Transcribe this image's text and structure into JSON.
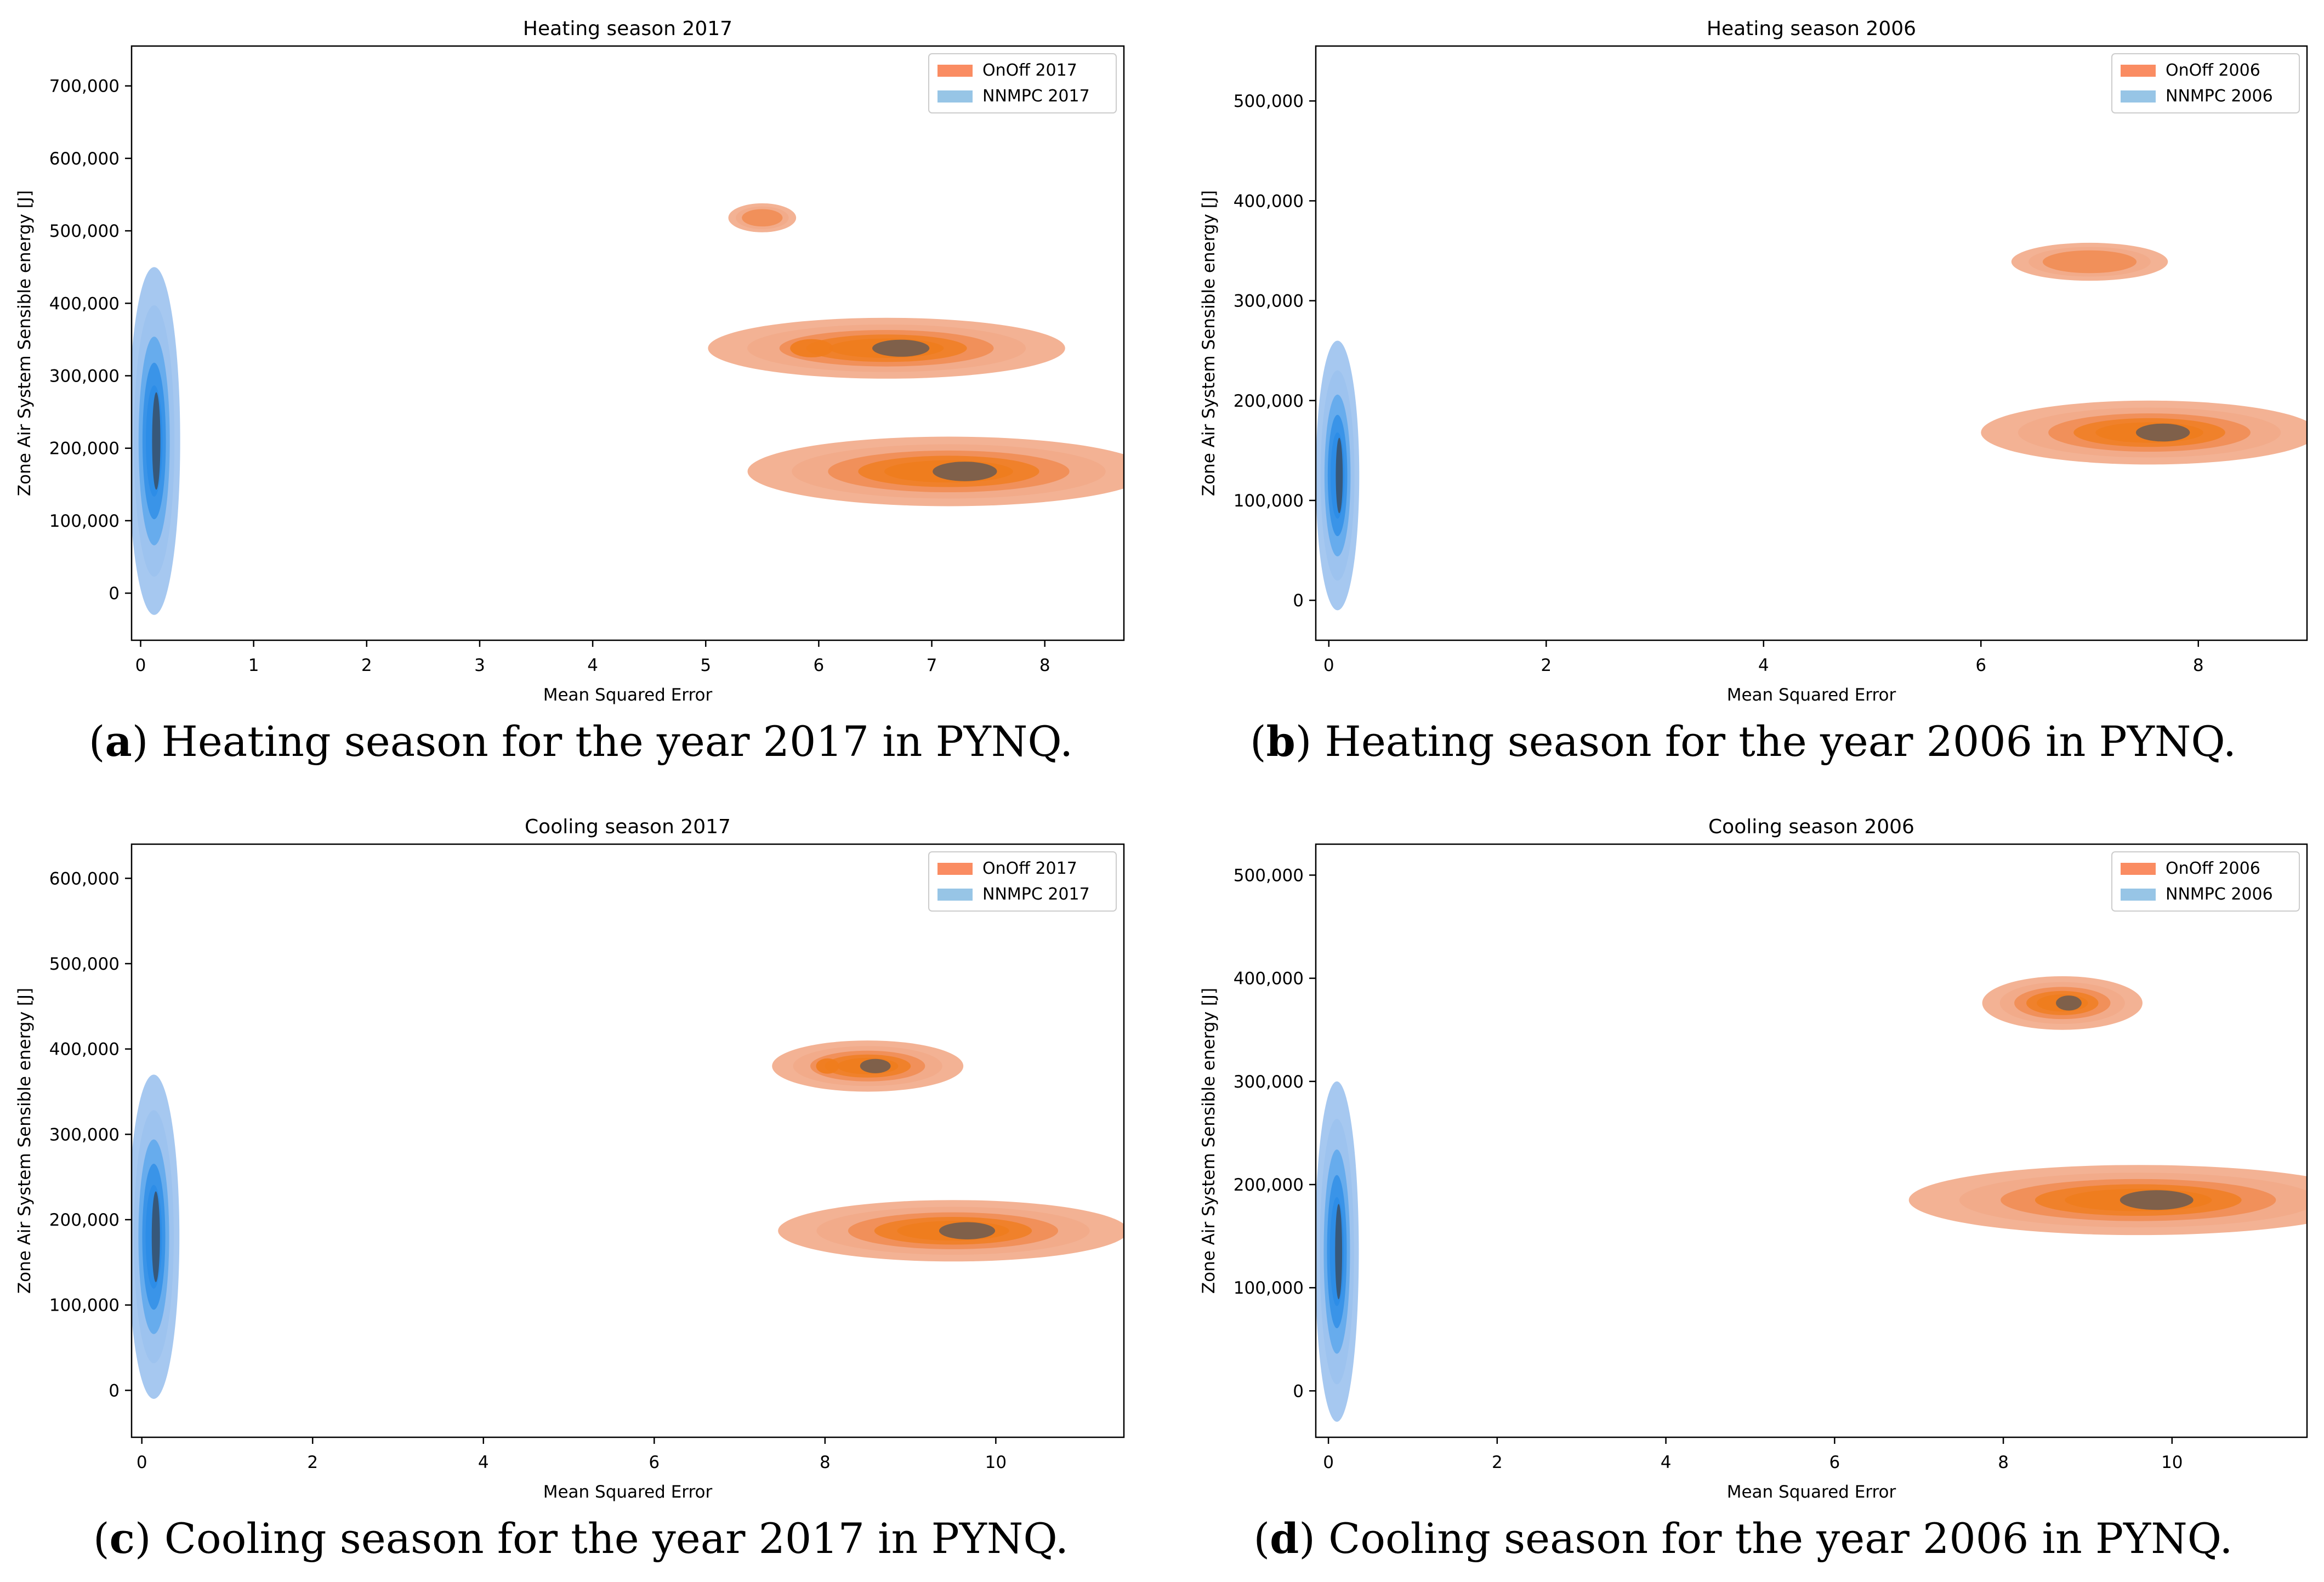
{
  "figure": {
    "captions": [
      {
        "label": "a",
        "text": "Heating season for the year 2017 in PYNQ."
      },
      {
        "label": "b",
        "text": "Heating season for the year 2006 in PYNQ."
      },
      {
        "label": "c",
        "text": "Cooling season for the year 2017 in PYNQ."
      },
      {
        "label": "d",
        "text": "Cooling season for the year 2006 in PYNQ."
      }
    ]
  },
  "colors": {
    "onoff_light": "#f2aa88",
    "onoff_mid": "#f08a4e",
    "onoff_strong": "#ef7c1c",
    "onoff_core": "#6b5a52",
    "nnmpc_light": "#9cc2ee",
    "nnmpc_mid": "#5aa6ec",
    "nnmpc_strong": "#2b8ce6",
    "nnmpc_core": "#3a4f66",
    "legend_onoff": "#fa8c62",
    "legend_nnmpc": "#97c5e6"
  },
  "chart_data": [
    {
      "type": "kde-density",
      "title": "Heating season 2017",
      "xlabel": "Mean Squared Error",
      "ylabel": "Zone Air System Sensible energy [J]",
      "xlim": [
        -0.08,
        8.7
      ],
      "ylim": [
        -65000,
        755000
      ],
      "xticks": [
        0,
        1,
        2,
        3,
        4,
        5,
        6,
        7,
        8
      ],
      "yticks": [
        0,
        100000,
        200000,
        300000,
        400000,
        500000,
        600000,
        700000
      ],
      "ytick_labels": [
        "0",
        "100,000",
        "200,000",
        "300,000",
        "400,000",
        "500,000",
        "600,000",
        "700,000"
      ],
      "legend": {
        "position": "top-right",
        "entries": [
          "OnOff 2017",
          "NNMPC 2017"
        ]
      },
      "series": [
        {
          "name": "OnOff 2017",
          "clusters": [
            {
              "cx": 7.15,
              "cy": 168000,
              "rx": 1.78,
              "ry": 48000,
              "cores": 1
            },
            {
              "cx": 6.6,
              "cy": 338000,
              "rx": 1.58,
              "ry": 42000,
              "cores": 2
            },
            {
              "cx": 5.5,
              "cy": 518000,
              "rx": 0.3,
              "ry": 20000,
              "cores": 0
            }
          ]
        },
        {
          "name": "NNMPC 2017",
          "clusters": [
            {
              "cx": 0.12,
              "cy": 210000,
              "rx": 0.23,
              "ry": 240000,
              "cores": 1
            }
          ]
        }
      ]
    },
    {
      "type": "kde-density",
      "title": "Heating season 2006",
      "xlabel": "Mean Squared Error",
      "ylabel": "Zone Air System Sensible energy [J]",
      "xlim": [
        -0.12,
        9.0
      ],
      "ylim": [
        -40000,
        555000
      ],
      "xticks": [
        0,
        2,
        4,
        6,
        8
      ],
      "yticks": [
        0,
        100000,
        200000,
        300000,
        400000,
        500000
      ],
      "ytick_labels": [
        "0",
        "100,000",
        "200,000",
        "300,000",
        "400,000",
        "500,000"
      ],
      "legend": {
        "position": "top-right",
        "entries": [
          "OnOff 2006",
          "NNMPC 2006"
        ]
      },
      "series": [
        {
          "name": "OnOff 2006",
          "clusters": [
            {
              "cx": 7.55,
              "cy": 168000,
              "rx": 1.55,
              "ry": 32000,
              "cores": 1
            },
            {
              "cx": 7.0,
              "cy": 339000,
              "rx": 0.72,
              "ry": 19000,
              "cores": 0
            }
          ]
        },
        {
          "name": "NNMPC 2006",
          "clusters": [
            {
              "cx": 0.08,
              "cy": 125000,
              "rx": 0.2,
              "ry": 135000,
              "cores": 1
            }
          ]
        }
      ]
    },
    {
      "type": "kde-density",
      "title": "Cooling season 2017",
      "xlabel": "Mean Squared Error",
      "ylabel": "Zone Air System Sensible energy [J]",
      "xlim": [
        -0.12,
        11.5
      ],
      "ylim": [
        -55000,
        640000
      ],
      "xticks": [
        0,
        2,
        4,
        6,
        8,
        10
      ],
      "yticks": [
        0,
        100000,
        200000,
        300000,
        400000,
        500000,
        600000
      ],
      "ytick_labels": [
        "0",
        "100,000",
        "200,000",
        "300,000",
        "400,000",
        "500,000",
        "600,000"
      ],
      "legend": {
        "position": "top-right",
        "entries": [
          "OnOff 2017",
          "NNMPC 2017"
        ]
      },
      "series": [
        {
          "name": "OnOff 2017",
          "clusters": [
            {
              "cx": 9.5,
              "cy": 187000,
              "rx": 2.05,
              "ry": 36000,
              "cores": 1
            },
            {
              "cx": 8.5,
              "cy": 380000,
              "rx": 1.12,
              "ry": 30000,
              "cores": 2
            }
          ]
        },
        {
          "name": "NNMPC 2017",
          "clusters": [
            {
              "cx": 0.14,
              "cy": 180000,
              "rx": 0.3,
              "ry": 190000,
              "cores": 1
            }
          ]
        }
      ]
    },
    {
      "type": "kde-density",
      "title": "Cooling season 2006",
      "xlabel": "Mean Squared Error",
      "ylabel": "Zone Air System Sensible energy [J]",
      "xlim": [
        -0.15,
        11.6
      ],
      "ylim": [
        -45000,
        530000
      ],
      "xticks": [
        0,
        2,
        4,
        6,
        8,
        10
      ],
      "yticks": [
        0,
        100000,
        200000,
        300000,
        400000,
        500000
      ],
      "ytick_labels": [
        "0",
        "100,000",
        "200,000",
        "300,000",
        "400,000",
        "500,000"
      ],
      "legend": {
        "position": "top-right",
        "entries": [
          "OnOff 2006",
          "NNMPC 2006"
        ]
      },
      "series": [
        {
          "name": "OnOff 2006",
          "clusters": [
            {
              "cx": 9.6,
              "cy": 185000,
              "rx": 2.72,
              "ry": 34000,
              "cores": 1
            },
            {
              "cx": 8.7,
              "cy": 376000,
              "rx": 0.95,
              "ry": 26000,
              "cores": 1
            }
          ]
        },
        {
          "name": "NNMPC 2006",
          "clusters": [
            {
              "cx": 0.1,
              "cy": 135000,
              "rx": 0.26,
              "ry": 165000,
              "cores": 1
            }
          ]
        }
      ]
    }
  ]
}
